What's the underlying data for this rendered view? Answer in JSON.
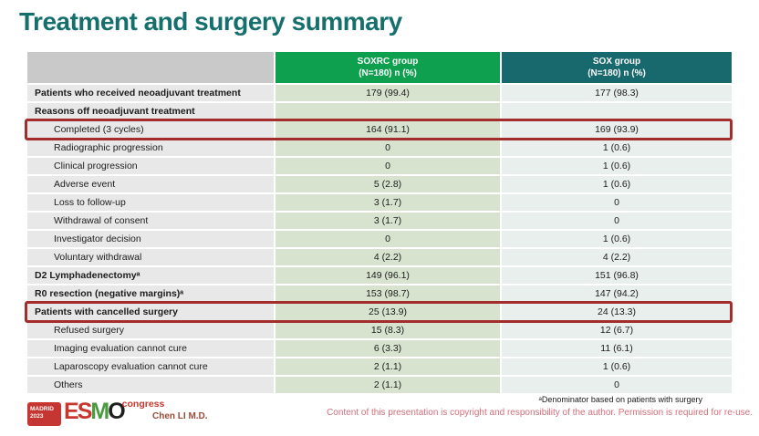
{
  "title": "Treatment and surgery summary",
  "table": {
    "columns": [
      {
        "line1": "",
        "line2": ""
      },
      {
        "line1": "SOXRC group",
        "line2": "(N=180)  n (%)"
      },
      {
        "line1": "SOX group",
        "line2": "(N=180)  n (%)"
      }
    ],
    "rows": [
      {
        "label": "Patients who received neoadjuvant treatment",
        "soxrc": "179 (99.4)",
        "sox": "177 (98.3)"
      },
      {
        "label": "Reasons off neoadjuvant treatment",
        "soxrc": "",
        "sox": ""
      },
      {
        "label": "Completed (3 cycles)",
        "soxrc": "164 (91.1)",
        "sox": "169 (93.9)"
      },
      {
        "label": "Radiographic progression",
        "soxrc": "0",
        "sox": "1 (0.6)"
      },
      {
        "label": "Clinical progression",
        "soxrc": "0",
        "sox": "1 (0.6)"
      },
      {
        "label": "Adverse event",
        "soxrc": "5 (2.8)",
        "sox": "1 (0.6)"
      },
      {
        "label": "Loss to follow-up",
        "soxrc": "3 (1.7)",
        "sox": "0"
      },
      {
        "label": "Withdrawal of consent",
        "soxrc": "3 (1.7)",
        "sox": "0"
      },
      {
        "label": "Investigator decision",
        "soxrc": "0",
        "sox": "1 (0.6)"
      },
      {
        "label": "Voluntary withdrawal",
        "soxrc": "4 (2.2)",
        "sox": "4 (2.2)"
      },
      {
        "label": "D2 Lymphadenectomyᵃ",
        "soxrc": "149 (96.1)",
        "sox": "151 (96.8)"
      },
      {
        "label": "R0 resection (negative margins)ᵃ",
        "soxrc": "153 (98.7)",
        "sox": "147 (94.2)"
      },
      {
        "label": "Patients with cancelled surgery",
        "soxrc": "25 (13.9)",
        "sox": "24 (13.3)"
      },
      {
        "label": "Refused surgery",
        "soxrc": "15 (8.3)",
        "sox": "12 (6.7)"
      },
      {
        "label": "Imaging evaluation cannot cure",
        "soxrc": "6 (3.3)",
        "sox": "11 (6.1)"
      },
      {
        "label": "Laparoscopy evaluation cannot cure",
        "soxrc": "2 (1.1)",
        "sox": "1 (0.6)"
      },
      {
        "label": "Others",
        "soxrc": "2 (1.1)",
        "sox": "0"
      }
    ]
  },
  "footer": {
    "footnote": "ᵃDenominator based on patients with surgery",
    "copyright": "Content of this presentation is copyright and responsibility of the author. Permission is required for re-use.",
    "author": "Chen LI M.D.",
    "logo": {
      "city": "MADRID",
      "year": "2023",
      "letters": [
        "E",
        "S",
        "M",
        "O"
      ],
      "congress": "congress"
    }
  },
  "colors": {
    "title_teal": "#15706d",
    "header_green": "#0ea04e",
    "header_teal": "#17696d",
    "cell_green": "#d7e3cf",
    "cell_blue": "#e8efec",
    "cell_gray": "#e8e8e8",
    "highlight_red": "#a32c2c",
    "copyright_pink": "#d26e7a",
    "author_red": "#9c4a38",
    "logo_red": "#c53531"
  }
}
